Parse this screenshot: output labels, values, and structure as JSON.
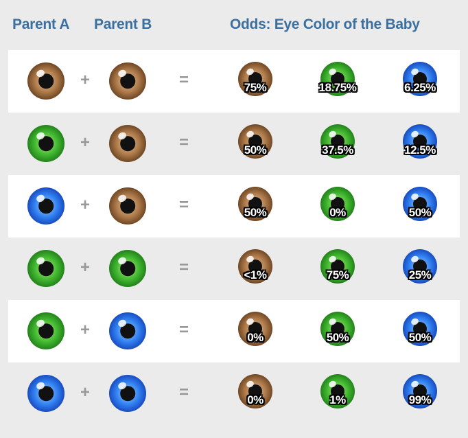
{
  "header": {
    "parent_a": "Parent A",
    "parent_b": "Parent B",
    "odds": "Odds: Eye Color of the Baby"
  },
  "symbols": {
    "plus": "+",
    "equals": "="
  },
  "colors": {
    "brown": "#8a5a30",
    "green": "#2f9e25",
    "blue": "#1f5ad8",
    "header_text": "#3a6fa0"
  },
  "rows": [
    {
      "parent_a": "brown",
      "parent_b": "brown",
      "odds": [
        {
          "color": "brown",
          "label": "75%"
        },
        {
          "color": "green",
          "label": "18.75%"
        },
        {
          "color": "blue",
          "label": "6.25%"
        }
      ]
    },
    {
      "parent_a": "green",
      "parent_b": "brown",
      "odds": [
        {
          "color": "brown",
          "label": "50%"
        },
        {
          "color": "green",
          "label": "37.5%"
        },
        {
          "color": "blue",
          "label": "12.5%"
        }
      ]
    },
    {
      "parent_a": "blue",
      "parent_b": "brown",
      "odds": [
        {
          "color": "brown",
          "label": "50%"
        },
        {
          "color": "green",
          "label": "0%"
        },
        {
          "color": "blue",
          "label": "50%"
        }
      ]
    },
    {
      "parent_a": "green",
      "parent_b": "green",
      "odds": [
        {
          "color": "brown",
          "label": "<1%"
        },
        {
          "color": "green",
          "label": "75%"
        },
        {
          "color": "blue",
          "label": "25%"
        }
      ]
    },
    {
      "parent_a": "green",
      "parent_b": "blue",
      "odds": [
        {
          "color": "brown",
          "label": "0%"
        },
        {
          "color": "green",
          "label": "50%"
        },
        {
          "color": "blue",
          "label": "50%"
        }
      ]
    },
    {
      "parent_a": "blue",
      "parent_b": "blue",
      "odds": [
        {
          "color": "brown",
          "label": "0%"
        },
        {
          "color": "green",
          "label": "1%"
        },
        {
          "color": "blue",
          "label": "99%"
        }
      ]
    }
  ]
}
